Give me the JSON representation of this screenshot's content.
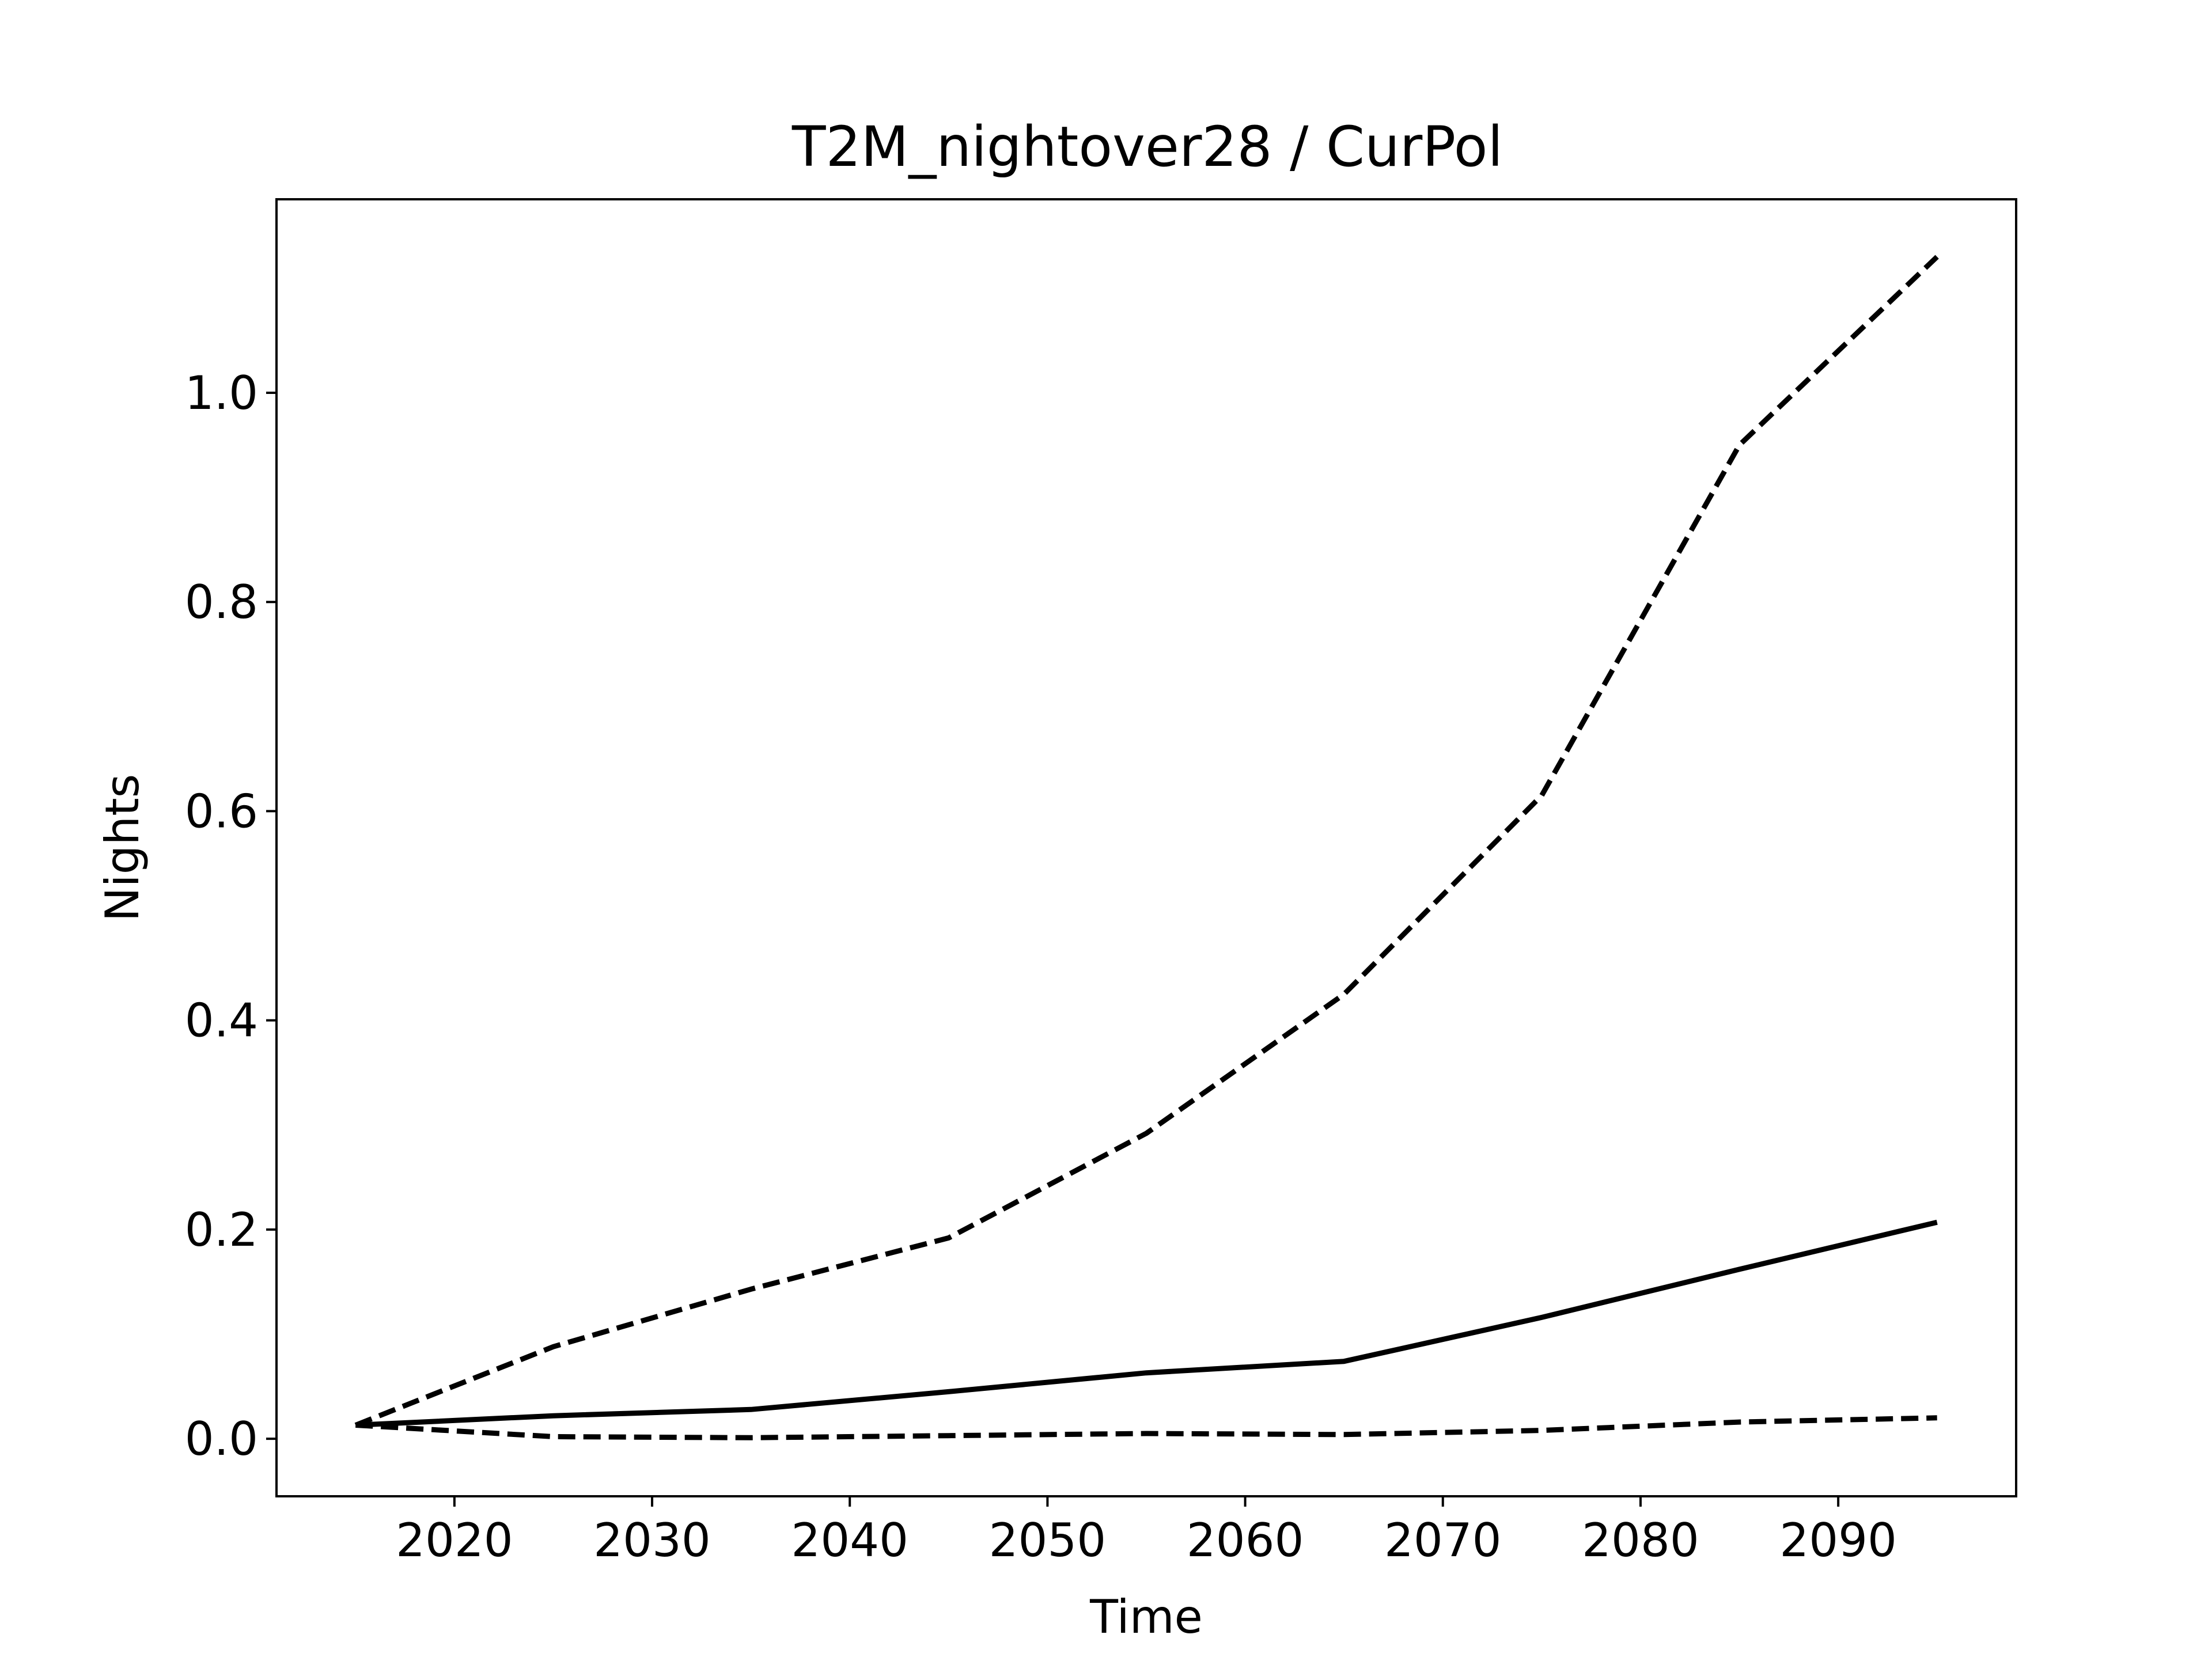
{
  "chart_data": {
    "type": "line",
    "title": "T2M_nightover28 / CurPol",
    "xlabel": "Time",
    "ylabel": "Nights",
    "x": [
      2015,
      2025,
      2035,
      2045,
      2055,
      2065,
      2075,
      2085,
      2095
    ],
    "xlim": [
      2011,
      2099
    ],
    "ylim": [
      -0.055,
      1.185
    ],
    "xticks": [
      2020,
      2030,
      2040,
      2050,
      2060,
      2070,
      2080,
      2090
    ],
    "yticks": [
      0.0,
      0.2,
      0.4,
      0.6,
      0.8,
      1.0
    ],
    "ytick_labels": [
      "0.0",
      "0.2",
      "0.4",
      "0.6",
      "0.8",
      "1.0"
    ],
    "grid": false,
    "line_color": "#000000",
    "series": [
      {
        "style": "dashed",
        "values": [
          0.013,
          0.088,
          0.143,
          0.192,
          0.292,
          0.425,
          0.615,
          0.95,
          1.13
        ]
      },
      {
        "style": "solid",
        "values": [
          0.013,
          0.022,
          0.028,
          0.045,
          0.063,
          0.074,
          0.116,
          0.162,
          0.207
        ]
      },
      {
        "style": "dashed",
        "values": [
          0.013,
          0.002,
          0.001,
          0.003,
          0.005,
          0.004,
          0.008,
          0.016,
          0.02
        ]
      }
    ]
  }
}
